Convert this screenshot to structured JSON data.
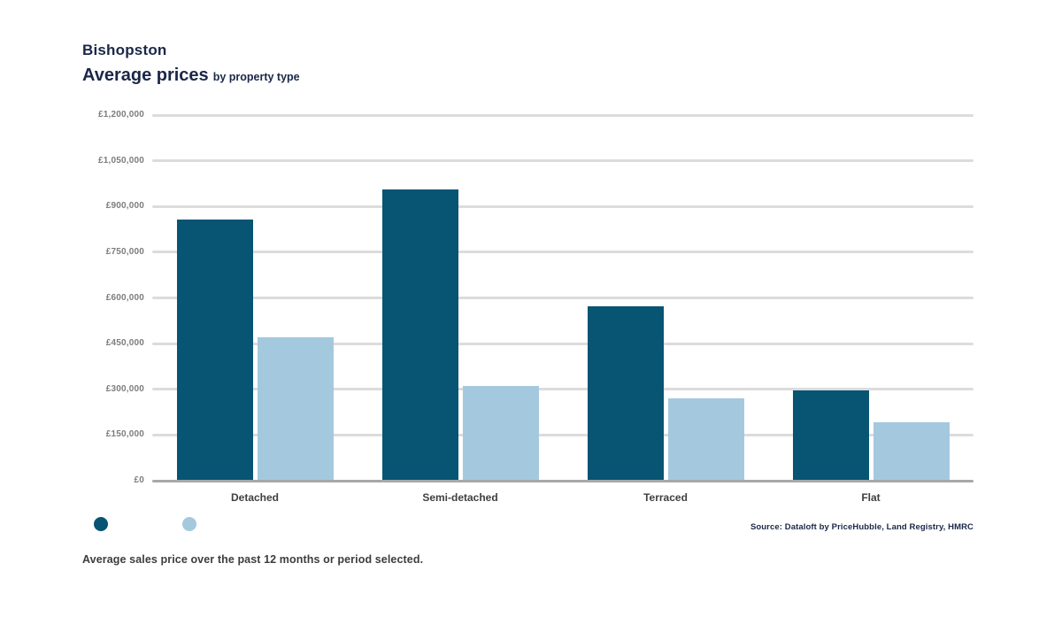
{
  "header": {
    "location": "Bishopston",
    "title_main": "Average prices",
    "title_suffix": "by property type"
  },
  "chart_data": {
    "type": "bar",
    "title": "Average prices by property type",
    "categories": [
      "Detached",
      "Semi-detached",
      "Terraced",
      "Flat"
    ],
    "series": [
      {
        "label": "",
        "color": "#075473",
        "values": [
          856000,
          955000,
          573000,
          295000
        ]
      },
      {
        "label": "",
        "color": "#a4c9de",
        "values": [
          471000,
          310000,
          271000,
          193000
        ]
      }
    ],
    "ylabel": "",
    "xlabel": "",
    "ylim": [
      0,
      1200000
    ],
    "y_tick_labels": [
      "£1,200,000",
      "£1,050,000",
      "£900,000",
      "£750,000",
      "£600,000",
      "£450,000",
      "£300,000",
      "£150,000",
      "£0"
    ],
    "grid": true,
    "legend_position": "bottom-left"
  },
  "legend": {
    "items": [
      {
        "label": "",
        "color": "#075473"
      },
      {
        "label": "",
        "color": "#a4c9de"
      }
    ]
  },
  "footer": {
    "source": "Source: Dataloft by PriceHubble, Land Registry, HMRC",
    "note": "Average sales price over the past 12 months or period selected."
  },
  "colors": {
    "dark_series": "#075473",
    "light_series": "#a4c9de",
    "title_navy": "#1a2747",
    "gridline": "#dcdcdc",
    "axis_line": "#a8a8a8",
    "y_tick_text": "#7d7d7d",
    "x_tick_text": "#3f3f3f"
  }
}
